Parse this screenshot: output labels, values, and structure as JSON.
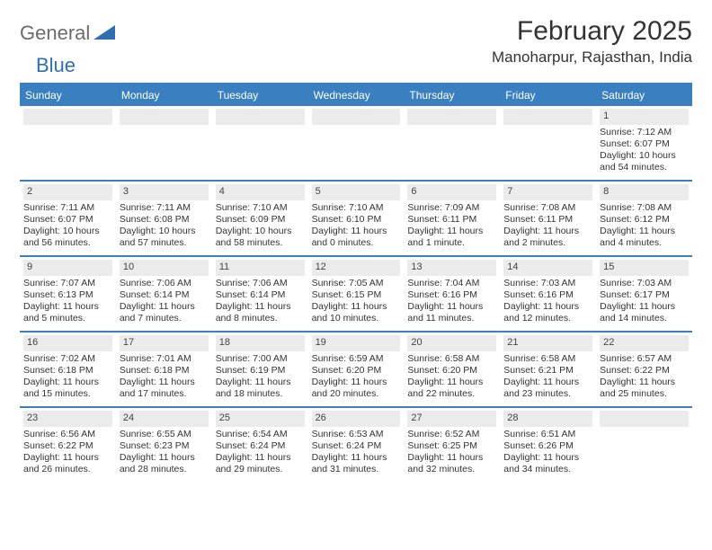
{
  "logo": {
    "text1": "General",
    "text2": "Blue"
  },
  "header": {
    "month_title": "February 2025",
    "location": "Manoharpur, Rajasthan, India"
  },
  "colors": {
    "accent": "#3a7fbf",
    "band": "#ebebeb",
    "text": "#333333",
    "logo_gray": "#6b6b6b"
  },
  "day_headers": [
    "Sunday",
    "Monday",
    "Tuesday",
    "Wednesday",
    "Thursday",
    "Friday",
    "Saturday"
  ],
  "weeks": [
    [
      {
        "blank": true
      },
      {
        "blank": true
      },
      {
        "blank": true
      },
      {
        "blank": true
      },
      {
        "blank": true
      },
      {
        "blank": true
      },
      {
        "day": "1",
        "sunrise": "Sunrise: 7:12 AM",
        "sunset": "Sunset: 6:07 PM",
        "daylight": "Daylight: 10 hours and 54 minutes."
      }
    ],
    [
      {
        "day": "2",
        "sunrise": "Sunrise: 7:11 AM",
        "sunset": "Sunset: 6:07 PM",
        "daylight": "Daylight: 10 hours and 56 minutes."
      },
      {
        "day": "3",
        "sunrise": "Sunrise: 7:11 AM",
        "sunset": "Sunset: 6:08 PM",
        "daylight": "Daylight: 10 hours and 57 minutes."
      },
      {
        "day": "4",
        "sunrise": "Sunrise: 7:10 AM",
        "sunset": "Sunset: 6:09 PM",
        "daylight": "Daylight: 10 hours and 58 minutes."
      },
      {
        "day": "5",
        "sunrise": "Sunrise: 7:10 AM",
        "sunset": "Sunset: 6:10 PM",
        "daylight": "Daylight: 11 hours and 0 minutes."
      },
      {
        "day": "6",
        "sunrise": "Sunrise: 7:09 AM",
        "sunset": "Sunset: 6:11 PM",
        "daylight": "Daylight: 11 hours and 1 minute."
      },
      {
        "day": "7",
        "sunrise": "Sunrise: 7:08 AM",
        "sunset": "Sunset: 6:11 PM",
        "daylight": "Daylight: 11 hours and 2 minutes."
      },
      {
        "day": "8",
        "sunrise": "Sunrise: 7:08 AM",
        "sunset": "Sunset: 6:12 PM",
        "daylight": "Daylight: 11 hours and 4 minutes."
      }
    ],
    [
      {
        "day": "9",
        "sunrise": "Sunrise: 7:07 AM",
        "sunset": "Sunset: 6:13 PM",
        "daylight": "Daylight: 11 hours and 5 minutes."
      },
      {
        "day": "10",
        "sunrise": "Sunrise: 7:06 AM",
        "sunset": "Sunset: 6:14 PM",
        "daylight": "Daylight: 11 hours and 7 minutes."
      },
      {
        "day": "11",
        "sunrise": "Sunrise: 7:06 AM",
        "sunset": "Sunset: 6:14 PM",
        "daylight": "Daylight: 11 hours and 8 minutes."
      },
      {
        "day": "12",
        "sunrise": "Sunrise: 7:05 AM",
        "sunset": "Sunset: 6:15 PM",
        "daylight": "Daylight: 11 hours and 10 minutes."
      },
      {
        "day": "13",
        "sunrise": "Sunrise: 7:04 AM",
        "sunset": "Sunset: 6:16 PM",
        "daylight": "Daylight: 11 hours and 11 minutes."
      },
      {
        "day": "14",
        "sunrise": "Sunrise: 7:03 AM",
        "sunset": "Sunset: 6:16 PM",
        "daylight": "Daylight: 11 hours and 12 minutes."
      },
      {
        "day": "15",
        "sunrise": "Sunrise: 7:03 AM",
        "sunset": "Sunset: 6:17 PM",
        "daylight": "Daylight: 11 hours and 14 minutes."
      }
    ],
    [
      {
        "day": "16",
        "sunrise": "Sunrise: 7:02 AM",
        "sunset": "Sunset: 6:18 PM",
        "daylight": "Daylight: 11 hours and 15 minutes."
      },
      {
        "day": "17",
        "sunrise": "Sunrise: 7:01 AM",
        "sunset": "Sunset: 6:18 PM",
        "daylight": "Daylight: 11 hours and 17 minutes."
      },
      {
        "day": "18",
        "sunrise": "Sunrise: 7:00 AM",
        "sunset": "Sunset: 6:19 PM",
        "daylight": "Daylight: 11 hours and 18 minutes."
      },
      {
        "day": "19",
        "sunrise": "Sunrise: 6:59 AM",
        "sunset": "Sunset: 6:20 PM",
        "daylight": "Daylight: 11 hours and 20 minutes."
      },
      {
        "day": "20",
        "sunrise": "Sunrise: 6:58 AM",
        "sunset": "Sunset: 6:20 PM",
        "daylight": "Daylight: 11 hours and 22 minutes."
      },
      {
        "day": "21",
        "sunrise": "Sunrise: 6:58 AM",
        "sunset": "Sunset: 6:21 PM",
        "daylight": "Daylight: 11 hours and 23 minutes."
      },
      {
        "day": "22",
        "sunrise": "Sunrise: 6:57 AM",
        "sunset": "Sunset: 6:22 PM",
        "daylight": "Daylight: 11 hours and 25 minutes."
      }
    ],
    [
      {
        "day": "23",
        "sunrise": "Sunrise: 6:56 AM",
        "sunset": "Sunset: 6:22 PM",
        "daylight": "Daylight: 11 hours and 26 minutes."
      },
      {
        "day": "24",
        "sunrise": "Sunrise: 6:55 AM",
        "sunset": "Sunset: 6:23 PM",
        "daylight": "Daylight: 11 hours and 28 minutes."
      },
      {
        "day": "25",
        "sunrise": "Sunrise: 6:54 AM",
        "sunset": "Sunset: 6:24 PM",
        "daylight": "Daylight: 11 hours and 29 minutes."
      },
      {
        "day": "26",
        "sunrise": "Sunrise: 6:53 AM",
        "sunset": "Sunset: 6:24 PM",
        "daylight": "Daylight: 11 hours and 31 minutes."
      },
      {
        "day": "27",
        "sunrise": "Sunrise: 6:52 AM",
        "sunset": "Sunset: 6:25 PM",
        "daylight": "Daylight: 11 hours and 32 minutes."
      },
      {
        "day": "28",
        "sunrise": "Sunrise: 6:51 AM",
        "sunset": "Sunset: 6:26 PM",
        "daylight": "Daylight: 11 hours and 34 minutes."
      },
      {
        "blank": true
      }
    ]
  ]
}
